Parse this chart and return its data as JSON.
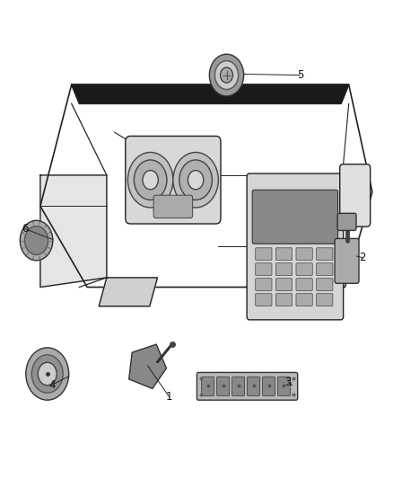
{
  "bg_color": "#ffffff",
  "fig_width": 4.38,
  "fig_height": 5.33,
  "dpi": 100,
  "line_color": "#222222",
  "line_width": 1.0
}
